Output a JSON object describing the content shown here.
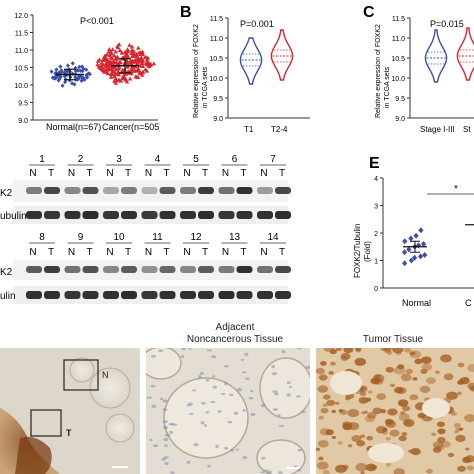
{
  "panel_a": {
    "pvalue": "P<0.001",
    "y_ticks": [
      "12.0",
      "11.5",
      "11.0",
      "10.5",
      "10.0",
      "9.5",
      "9.0"
    ],
    "groups": [
      "Normal(n=67)",
      "Cancer(n=505)"
    ]
  },
  "panel_b": {
    "letter": "B",
    "pvalue": "P=0.001",
    "ylabel_line1": "Relative expression of FOXK2",
    "ylabel_line2": "in TCGA sets",
    "y_ticks": [
      "11.5",
      "11.0",
      "10.5",
      "10.0",
      "9.5",
      "9.0"
    ],
    "groups": [
      "T1",
      "T2-4"
    ]
  },
  "panel_c": {
    "letter": "C",
    "pvalue": "P=0.015",
    "ylabel_line1": "Relative expression of FOXK2",
    "ylabel_line2": "in TCGA sets",
    "y_ticks": [
      "11.5",
      "11.0",
      "10.5",
      "10.0",
      "9.5",
      "9.0"
    ],
    "groups": [
      "Stage I-III",
      "St"
    ]
  },
  "panel_d": {
    "top_lanes": [
      "1",
      "2",
      "3",
      "4",
      "5",
      "6",
      "7"
    ],
    "bottom_lanes": [
      "8",
      "9",
      "10",
      "11",
      "12",
      "13",
      "14"
    ],
    "nt_label_n": "N",
    "nt_label_t": "T",
    "row_foxk2": "K2",
    "row_tubulin": "ubulin",
    "row_foxk2_b": "K2",
    "row_tubulin_b": "ulin"
  },
  "panel_e": {
    "letter": "E",
    "significance": "*",
    "ylabel_line1": "FOXK2/Tubulin",
    "ylabel_line2": "(Fold)",
    "y_ticks": [
      "4",
      "3",
      "2",
      "1",
      "0"
    ],
    "groups": [
      "Normal",
      "C"
    ]
  },
  "panel_f": {
    "title_adjacent_line1": "Adjacent",
    "title_adjacent_line2": "Noncancerous Tissue",
    "title_tumor": "Tumor Tissue",
    "box_label_n": "N",
    "box_label_t": "T"
  },
  "colors": {
    "normal": "#3a4fa8",
    "cancer": "#d8262e",
    "blot": "#1c1c1c",
    "tissue_bg": "#d9d2c7",
    "tumor_stain": "#a45f22"
  },
  "chart_data": [
    {
      "type": "scatter",
      "panel": "A",
      "title": "",
      "pvalue": "P<0.001",
      "categories": [
        "Normal(n=67)",
        "Cancer(n=505)"
      ],
      "ylim": [
        9.0,
        12.0
      ],
      "series": [
        {
          "name": "Normal(n=67)",
          "mean": 10.3,
          "sd_low": 10.15,
          "sd_high": 10.45,
          "range": [
            9.9,
            10.75
          ],
          "n": 67
        },
        {
          "name": "Cancer(n=505)",
          "mean": 10.55,
          "sd_low": 10.35,
          "sd_high": 10.75,
          "range": [
            9.95,
            11.3
          ],
          "n": 505
        }
      ]
    },
    {
      "type": "violin",
      "panel": "B",
      "pvalue": "P=0.001",
      "ylabel": "Relative expression of FOXK2 in TCGA sets",
      "categories": [
        "T1",
        "T2-4"
      ],
      "ylim": [
        9.0,
        11.5
      ],
      "series": [
        {
          "name": "T1",
          "median": 10.45,
          "q1": 10.3,
          "q3": 10.6,
          "min": 9.85,
          "max": 11.0
        },
        {
          "name": "T2-4",
          "median": 10.55,
          "q1": 10.4,
          "q3": 10.7,
          "min": 9.95,
          "max": 11.2
        }
      ]
    },
    {
      "type": "violin",
      "panel": "C",
      "pvalue": "P=0.015",
      "ylabel": "Relative expression of FOXK2 in TCGA sets",
      "categories": [
        "Stage I-III",
        "St"
      ],
      "ylim": [
        9.0,
        11.5
      ],
      "series": [
        {
          "name": "Stage I-III",
          "median": 10.5,
          "q1": 10.35,
          "q3": 10.65,
          "min": 9.9,
          "max": 11.2
        },
        {
          "name": "St",
          "median": 10.55,
          "q1": 10.4,
          "q3": 10.7,
          "min": 9.95,
          "max": 11.25
        }
      ]
    },
    {
      "type": "scatter",
      "panel": "E",
      "significance": "*",
      "ylabel": "FOXK2/Tubulin (Fold)",
      "categories": [
        "Normal",
        "C"
      ],
      "ylim": [
        0,
        4
      ],
      "series": [
        {
          "name": "Normal",
          "mean": 1.5,
          "sem_low": 1.3,
          "sem_high": 1.7,
          "values": [
            0.9,
            1.0,
            1.1,
            1.15,
            1.2,
            1.3,
            1.4,
            1.5,
            1.55,
            1.6,
            1.7,
            1.8,
            1.9,
            2.1
          ]
        },
        {
          "name": "C",
          "mean": 2.3
        }
      ]
    }
  ]
}
